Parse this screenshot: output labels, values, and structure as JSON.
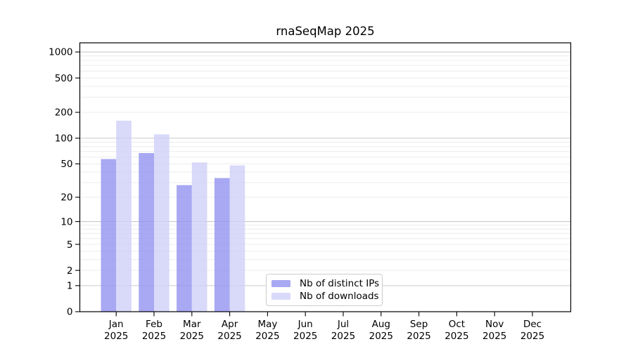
{
  "window": {
    "background": "#ffffff"
  },
  "chart_data": {
    "type": "bar",
    "title": "rnaSeqMap 2025",
    "categories": [
      "Jan",
      "Feb",
      "Mar",
      "Apr",
      "May",
      "Jun",
      "Jul",
      "Aug",
      "Sep",
      "Oct",
      "Nov",
      "Dec"
    ],
    "category_year": "2025",
    "series": [
      {
        "name": "Nb of distinct IPs",
        "color": "#a8a8f3",
        "values": [
          57,
          67,
          28,
          34,
          0,
          0,
          0,
          0,
          0,
          0,
          0,
          0
        ]
      },
      {
        "name": "Nb of downloads",
        "color": "#d9d9f9",
        "values": [
          160,
          111,
          52,
          48,
          0,
          0,
          0,
          0,
          0,
          0,
          0,
          0
        ]
      }
    ],
    "xlabel": "",
    "ylabel": "",
    "y_axis": {
      "scale": "log10(value+1)",
      "tick_values": [
        1000,
        500,
        200,
        100,
        50,
        20,
        10,
        5,
        2,
        1,
        0
      ],
      "ylim": [
        0,
        1276
      ]
    },
    "grid": {
      "on": true,
      "major_values": [
        1,
        10,
        100,
        1000
      ],
      "minor_values": [
        2,
        3,
        4,
        5,
        6,
        7,
        8,
        9,
        20,
        30,
        40,
        50,
        60,
        70,
        80,
        90,
        200,
        300,
        400,
        500,
        600,
        700,
        800,
        900
      ],
      "major_color": "#c9c9c9",
      "minor_color": "#ececec"
    },
    "legend": {
      "position": "lower center",
      "entries": [
        "Nb of distinct IPs",
        "Nb of downloads"
      ]
    },
    "axis_color": "#000000",
    "bar_opacity": 0.8
  }
}
